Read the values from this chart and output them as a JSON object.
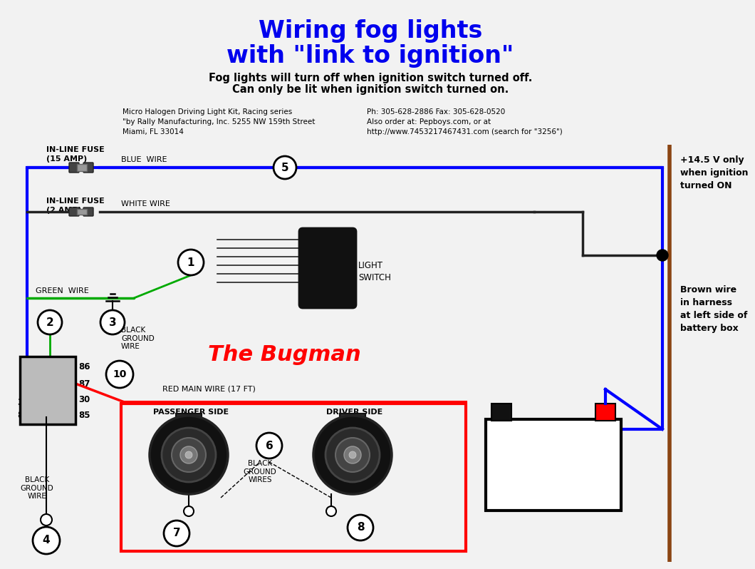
{
  "title_line1": "Wiring fog lights",
  "title_line2": "with \"link to ignition\"",
  "title_color": "#0000EE",
  "subtitle_line1": "Fog lights will turn off when ignition switch turned off.",
  "subtitle_line2": "Can only be lit when ignition switch turned on.",
  "info_left": "Micro Halogen Driving Light Kit, Racing series\n\"by Rally Manufacturing, Inc. 5255 NW 159th Street\nMiami, FL 33014",
  "info_right": "Ph: 305-628-2886 Fax: 305-628-0520\nAlso order at: Pepboys.com, or at\nhttp://www.7453217467431.com (search for \"3256\")",
  "right_label": "+14.5 V only\nwhen ignition\nturned ON",
  "brown_label": "Brown wire\nin harness\nat left side of\nbattery box",
  "bugman_text": "The Bugman",
  "bugman_color": "#FF0000",
  "bg_color": "#F2F2F2",
  "blue": "#0000FF",
  "green": "#00AA00",
  "red": "#FF0000",
  "blk": "#000000",
  "brn": "#8B4513",
  "drk": "#222222",
  "wire_lw": 2.5,
  "blue_lw": 3.0
}
